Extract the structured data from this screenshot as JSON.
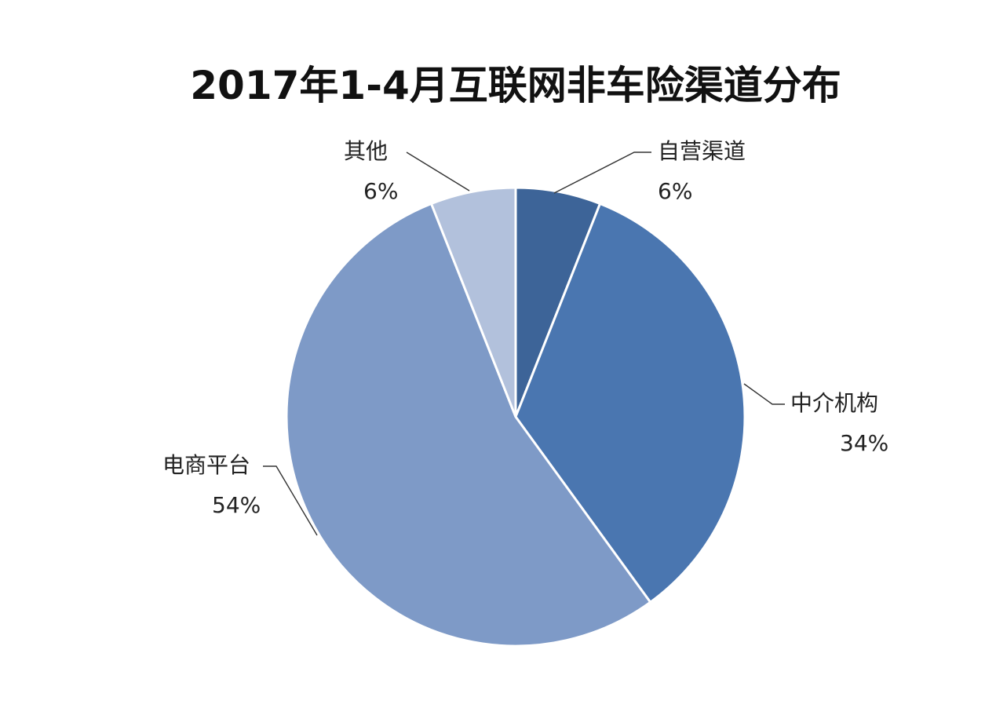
{
  "chart_data": {
    "type": "pie",
    "title": "2017年1-4月互联网非车险渠道分布",
    "slices": [
      {
        "label": "自营渠道",
        "value": 6,
        "value_label": "6%",
        "color": "#3d6498"
      },
      {
        "label": "中介机构",
        "value": 34,
        "value_label": "34%",
        "color": "#4a76b0"
      },
      {
        "label": "电商平台",
        "value": 54,
        "value_label": "54%",
        "color": "#7e9ac7"
      },
      {
        "label": "其他",
        "value": 6,
        "value_label": "6%",
        "color": "#b2c1dc"
      }
    ],
    "start": "12 o'clock",
    "direction": "clockwise",
    "legend": "none",
    "data_labels": "outside with leader lines"
  }
}
